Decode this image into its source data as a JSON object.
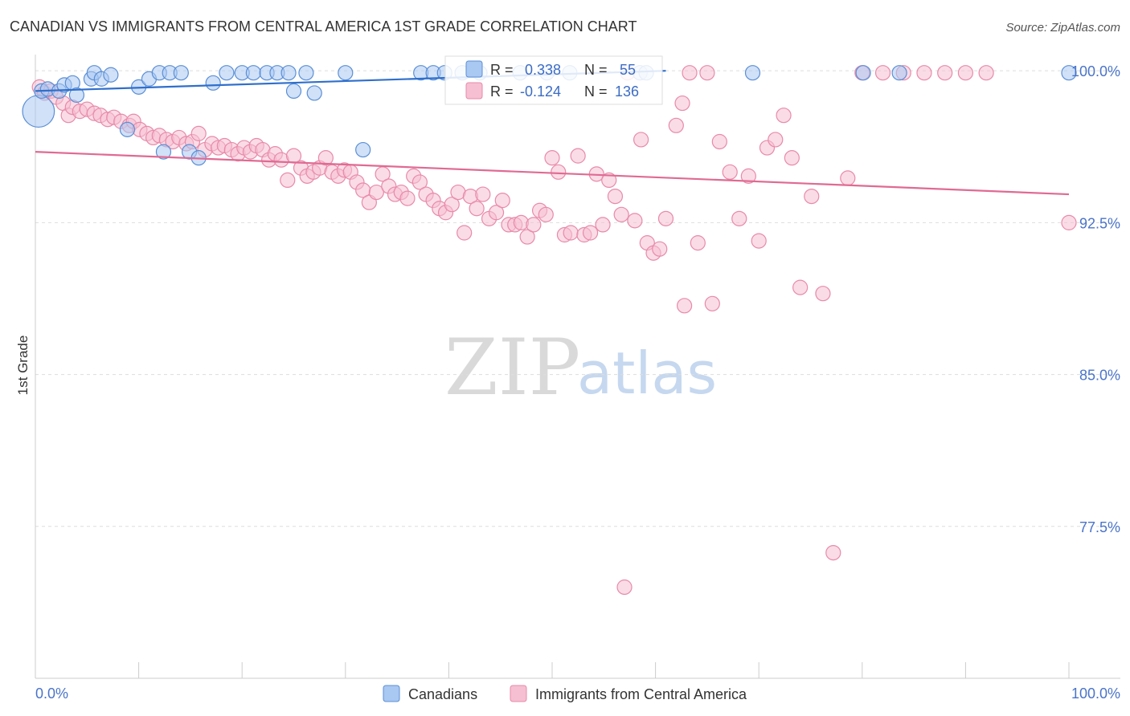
{
  "title": "CANADIAN VS IMMIGRANTS FROM CENTRAL AMERICA 1ST GRADE CORRELATION CHART",
  "source": "Source: ZipAtlas.com",
  "watermark": {
    "zip": "ZIP",
    "atlas": "atlas"
  },
  "colors": {
    "blue_fill": "#a9c8f2",
    "blue_stroke": "#5b8fd6",
    "blue_line": "#2f6fcc",
    "pink_fill": "#f6bfd2",
    "pink_stroke": "#e88aa9",
    "pink_line": "#e06a93",
    "grid": "#dddddd",
    "axis": "#cccccc"
  },
  "stats": {
    "r_label": "R =",
    "n_label": "N =",
    "canadians": {
      "r": "0.338",
      "n": "55"
    },
    "immigrants": {
      "r": "-0.124",
      "n": "136"
    }
  },
  "chart_data": {
    "type": "scatter",
    "xlabel": "",
    "ylabel": "1st Grade",
    "xlim": [
      0,
      100
    ],
    "ylim": [
      70.0,
      100.8
    ],
    "x_tick_labels": [
      {
        "value": 0,
        "label": "0.0%"
      },
      {
        "value": 100,
        "label": "100.0%"
      }
    ],
    "y_tick_labels": [
      {
        "value": 100.0,
        "label": "100.0%"
      },
      {
        "value": 92.5,
        "label": "92.5%"
      },
      {
        "value": 85.0,
        "label": "85.0%"
      },
      {
        "value": 77.5,
        "label": "77.5%"
      }
    ],
    "legend": [
      "Canadians",
      "Immigrants from Central America"
    ],
    "series": [
      {
        "name": "Canadians",
        "trend": {
          "x1": 0,
          "y1": 99.0,
          "x2": 61,
          "y2": 100.0
        },
        "points": [
          [
            0.3,
            98.0,
            2.2
          ],
          [
            0.6,
            99.0,
            1
          ],
          [
            1.2,
            99.1,
            1
          ],
          [
            2.3,
            99.0,
            1
          ],
          [
            2.8,
            99.3,
            1
          ],
          [
            3.6,
            99.4,
            1
          ],
          [
            4.0,
            98.8,
            1
          ],
          [
            5.4,
            99.6,
            1
          ],
          [
            5.7,
            99.9,
            1
          ],
          [
            6.4,
            99.6,
            1
          ],
          [
            7.3,
            99.8,
            1
          ],
          [
            8.9,
            97.1,
            1
          ],
          [
            10.0,
            99.2,
            1
          ],
          [
            11.0,
            99.6,
            1
          ],
          [
            12.0,
            99.9,
            1
          ],
          [
            12.4,
            96.0,
            1
          ],
          [
            13.0,
            99.9,
            1
          ],
          [
            14.1,
            99.9,
            1
          ],
          [
            14.9,
            96.0,
            1
          ],
          [
            15.8,
            95.7,
            1
          ],
          [
            17.2,
            99.4,
            1
          ],
          [
            18.5,
            99.9,
            1
          ],
          [
            20.0,
            99.9,
            1
          ],
          [
            21.1,
            99.9,
            1
          ],
          [
            22.4,
            99.9,
            1
          ],
          [
            23.4,
            99.9,
            1
          ],
          [
            24.5,
            99.9,
            1
          ],
          [
            25.0,
            99.0,
            1
          ],
          [
            26.2,
            99.9,
            1
          ],
          [
            27.0,
            98.9,
            1
          ],
          [
            30.0,
            99.9,
            1
          ],
          [
            31.7,
            96.1,
            1
          ],
          [
            37.3,
            99.9,
            1
          ],
          [
            38.5,
            99.9,
            1
          ],
          [
            39.6,
            99.9,
            1
          ],
          [
            41.3,
            99.9,
            1
          ],
          [
            43.0,
            99.9,
            1
          ],
          [
            46.9,
            99.9,
            1
          ],
          [
            49.5,
            99.9,
            1
          ],
          [
            51.7,
            99.9,
            1
          ],
          [
            58.5,
            99.9,
            1
          ],
          [
            59.1,
            99.9,
            1
          ],
          [
            69.4,
            99.9,
            1
          ],
          [
            80.1,
            99.9,
            1
          ],
          [
            83.6,
            99.9,
            1
          ],
          [
            100.0,
            99.9,
            1
          ]
        ]
      },
      {
        "name": "Immigrants from Central America",
        "trend": {
          "x1": 0,
          "y1": 96.0,
          "x2": 100,
          "y2": 93.9
        },
        "points": [
          [
            0.4,
            99.2,
            1
          ],
          [
            0.9,
            98.9,
            1
          ],
          [
            1.5,
            99.0,
            1
          ],
          [
            2.0,
            98.7,
            1
          ],
          [
            2.7,
            98.4,
            1
          ],
          [
            3.2,
            97.8,
            1
          ],
          [
            3.6,
            98.2,
            1
          ],
          [
            4.3,
            98.0,
            1
          ],
          [
            5.0,
            98.1,
            1
          ],
          [
            5.7,
            97.9,
            1
          ],
          [
            6.3,
            97.8,
            1
          ],
          [
            7.0,
            97.6,
            1
          ],
          [
            7.6,
            97.7,
            1
          ],
          [
            8.3,
            97.5,
            1
          ],
          [
            9.1,
            97.3,
            1
          ],
          [
            9.5,
            97.5,
            1
          ],
          [
            10.1,
            97.1,
            1
          ],
          [
            10.8,
            96.9,
            1
          ],
          [
            11.4,
            96.7,
            1
          ],
          [
            12.0,
            96.8,
            1
          ],
          [
            12.7,
            96.6,
            1
          ],
          [
            13.3,
            96.5,
            1
          ],
          [
            13.9,
            96.7,
            1
          ],
          [
            14.6,
            96.4,
            1
          ],
          [
            15.2,
            96.5,
            1
          ],
          [
            15.8,
            96.9,
            1
          ],
          [
            16.4,
            96.1,
            1
          ],
          [
            17.1,
            96.4,
            1
          ],
          [
            17.7,
            96.2,
            1
          ],
          [
            18.3,
            96.3,
            1
          ],
          [
            19.0,
            96.1,
            1
          ],
          [
            19.6,
            95.9,
            1
          ],
          [
            20.2,
            96.2,
            1
          ],
          [
            20.8,
            96.0,
            1
          ],
          [
            21.4,
            96.3,
            1
          ],
          [
            22.0,
            96.1,
            1
          ],
          [
            22.6,
            95.6,
            1
          ],
          [
            23.2,
            95.9,
            1
          ],
          [
            23.8,
            95.6,
            1
          ],
          [
            24.4,
            94.6,
            1
          ],
          [
            25.0,
            95.8,
            1
          ],
          [
            25.7,
            95.2,
            1
          ],
          [
            26.3,
            94.8,
            1
          ],
          [
            26.9,
            95.0,
            1
          ],
          [
            27.5,
            95.2,
            1
          ],
          [
            28.1,
            95.7,
            1
          ],
          [
            28.7,
            95.0,
            1
          ],
          [
            29.3,
            94.8,
            1
          ],
          [
            29.9,
            95.1,
            1
          ],
          [
            30.5,
            95.0,
            1
          ],
          [
            31.1,
            94.5,
            1
          ],
          [
            31.7,
            94.1,
            1
          ],
          [
            32.3,
            93.5,
            1
          ],
          [
            33.0,
            94.0,
            1
          ],
          [
            33.6,
            94.9,
            1
          ],
          [
            34.2,
            94.3,
            1
          ],
          [
            34.8,
            93.9,
            1
          ],
          [
            35.4,
            94.0,
            1
          ],
          [
            36.0,
            93.7,
            1
          ],
          [
            36.6,
            94.8,
            1
          ],
          [
            37.2,
            94.5,
            1
          ],
          [
            37.8,
            93.9,
            1
          ],
          [
            38.5,
            93.6,
            1
          ],
          [
            39.1,
            93.2,
            1
          ],
          [
            39.7,
            93.0,
            1
          ],
          [
            40.3,
            93.4,
            1
          ],
          [
            40.9,
            94.0,
            1
          ],
          [
            41.5,
            92.0,
            1
          ],
          [
            42.1,
            93.8,
            1
          ],
          [
            42.7,
            93.2,
            1
          ],
          [
            43.3,
            93.9,
            1
          ],
          [
            43.9,
            92.7,
            1
          ],
          [
            44.6,
            93.0,
            1
          ],
          [
            45.2,
            93.6,
            1
          ],
          [
            45.8,
            92.4,
            1
          ],
          [
            46.4,
            92.4,
            1
          ],
          [
            47.0,
            92.5,
            1
          ],
          [
            47.6,
            91.8,
            1
          ],
          [
            48.2,
            92.4,
            1
          ],
          [
            48.8,
            93.1,
            1
          ],
          [
            49.4,
            92.9,
            1
          ],
          [
            50.0,
            95.7,
            1
          ],
          [
            50.6,
            95.0,
            1
          ],
          [
            51.2,
            91.9,
            1
          ],
          [
            51.8,
            92.0,
            1
          ],
          [
            52.5,
            95.8,
            1
          ],
          [
            53.1,
            91.9,
            1
          ],
          [
            53.7,
            92.0,
            1
          ],
          [
            54.3,
            94.9,
            1
          ],
          [
            54.9,
            92.4,
            1
          ],
          [
            55.5,
            94.6,
            1
          ],
          [
            56.1,
            93.8,
            1
          ],
          [
            56.7,
            92.9,
            1
          ],
          [
            57.3,
            99.9,
            1
          ],
          [
            58.0,
            92.6,
            1
          ],
          [
            58.6,
            96.6,
            1
          ],
          [
            59.2,
            91.5,
            1
          ],
          [
            59.8,
            91.0,
            1
          ],
          [
            60.4,
            91.2,
            1
          ],
          [
            61.0,
            92.7,
            1
          ],
          [
            62.0,
            97.3,
            1
          ],
          [
            62.6,
            98.4,
            1
          ],
          [
            63.3,
            99.9,
            1
          ],
          [
            64.1,
            91.5,
            1
          ],
          [
            65.0,
            99.9,
            1
          ],
          [
            66.2,
            96.5,
            1
          ],
          [
            67.2,
            95.0,
            1
          ],
          [
            68.1,
            92.7,
            1
          ],
          [
            69.0,
            94.8,
            1
          ],
          [
            70.0,
            91.6,
            1
          ],
          [
            70.8,
            96.2,
            1
          ],
          [
            71.6,
            96.6,
            1
          ],
          [
            72.4,
            97.8,
            1
          ],
          [
            73.2,
            95.7,
            1
          ],
          [
            74.0,
            89.3,
            1
          ],
          [
            75.1,
            93.8,
            1
          ],
          [
            76.2,
            89.0,
            1
          ],
          [
            77.2,
            76.2,
            1
          ],
          [
            78.6,
            94.7,
            1
          ],
          [
            80.0,
            99.9,
            1
          ],
          [
            82.0,
            99.9,
            1
          ],
          [
            84.0,
            99.9,
            1
          ],
          [
            86.0,
            99.9,
            1
          ],
          [
            88.0,
            99.9,
            1
          ],
          [
            90.0,
            99.9,
            1
          ],
          [
            92.0,
            99.9,
            1
          ],
          [
            100.0,
            92.5,
            1
          ],
          [
            57.0,
            74.5,
            1
          ],
          [
            65.5,
            88.5,
            1
          ],
          [
            62.8,
            88.4,
            1
          ]
        ]
      }
    ]
  }
}
